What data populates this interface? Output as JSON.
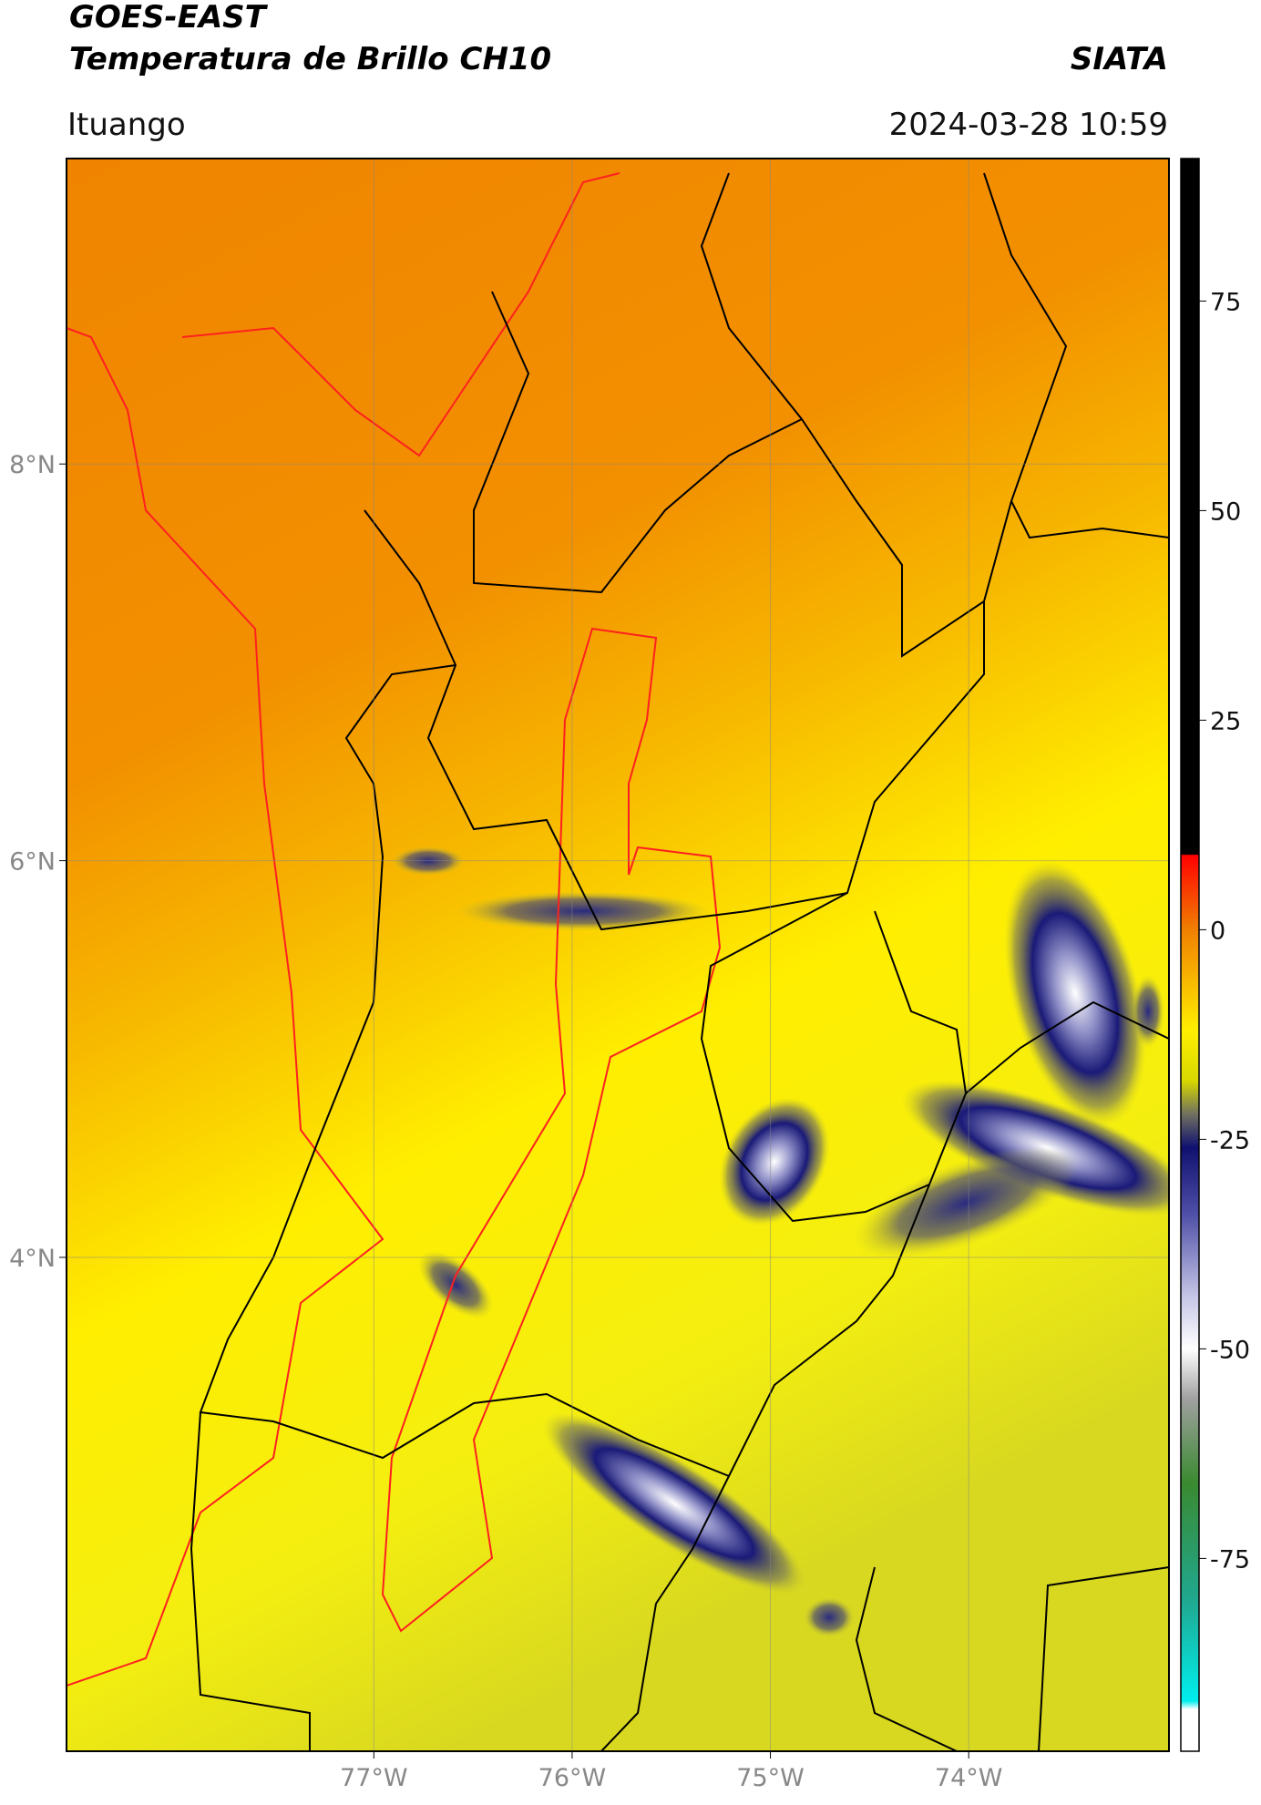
{
  "header": {
    "title": "GOES-EAST",
    "subtitle": "Temperatura de Brillo CH10",
    "source": "SIATA",
    "location": "Ituango",
    "timestamp": "2024-03-28 10:59"
  },
  "map": {
    "xlim": [
      -78.55,
      -72.99
    ],
    "ylim": [
      1.51,
      9.54
    ],
    "xticks": [
      {
        "value": -77,
        "label": "77°W"
      },
      {
        "value": -76,
        "label": "76°W"
      },
      {
        "value": -75,
        "label": "75°W"
      },
      {
        "value": -74,
        "label": "74°W"
      }
    ],
    "yticks": [
      {
        "value": 8,
        "label": "8°N"
      },
      {
        "value": 6,
        "label": "6°N"
      },
      {
        "value": 4,
        "label": "4°N"
      }
    ],
    "grid": true
  },
  "colorbar": {
    "clim": [
      -98,
      92
    ],
    "ticks": [
      75,
      50,
      25,
      0,
      -25,
      -50,
      -75
    ],
    "stops": [
      {
        "value": 92,
        "color": "#000000"
      },
      {
        "value": 9,
        "color": "#000000"
      },
      {
        "value": 8.9,
        "color": "#ff0000"
      },
      {
        "value": 0,
        "color": "#f08000"
      },
      {
        "value": -12,
        "color": "#ffee00"
      },
      {
        "value": -18,
        "color": "#d8d800"
      },
      {
        "value": -22,
        "color": "#707060"
      },
      {
        "value": -26,
        "color": "#101070"
      },
      {
        "value": -34,
        "color": "#5050a8"
      },
      {
        "value": -44,
        "color": "#c8c8e8"
      },
      {
        "value": -50,
        "color": "#ffffff"
      },
      {
        "value": -56,
        "color": "#a0a0a0"
      },
      {
        "value": -66,
        "color": "#3a8a30"
      },
      {
        "value": -80,
        "color": "#20a890"
      },
      {
        "value": -92,
        "color": "#00eeee"
      },
      {
        "value": -93,
        "color": "#ffffff"
      },
      {
        "value": -98,
        "color": "#ffffff"
      }
    ]
  }
}
